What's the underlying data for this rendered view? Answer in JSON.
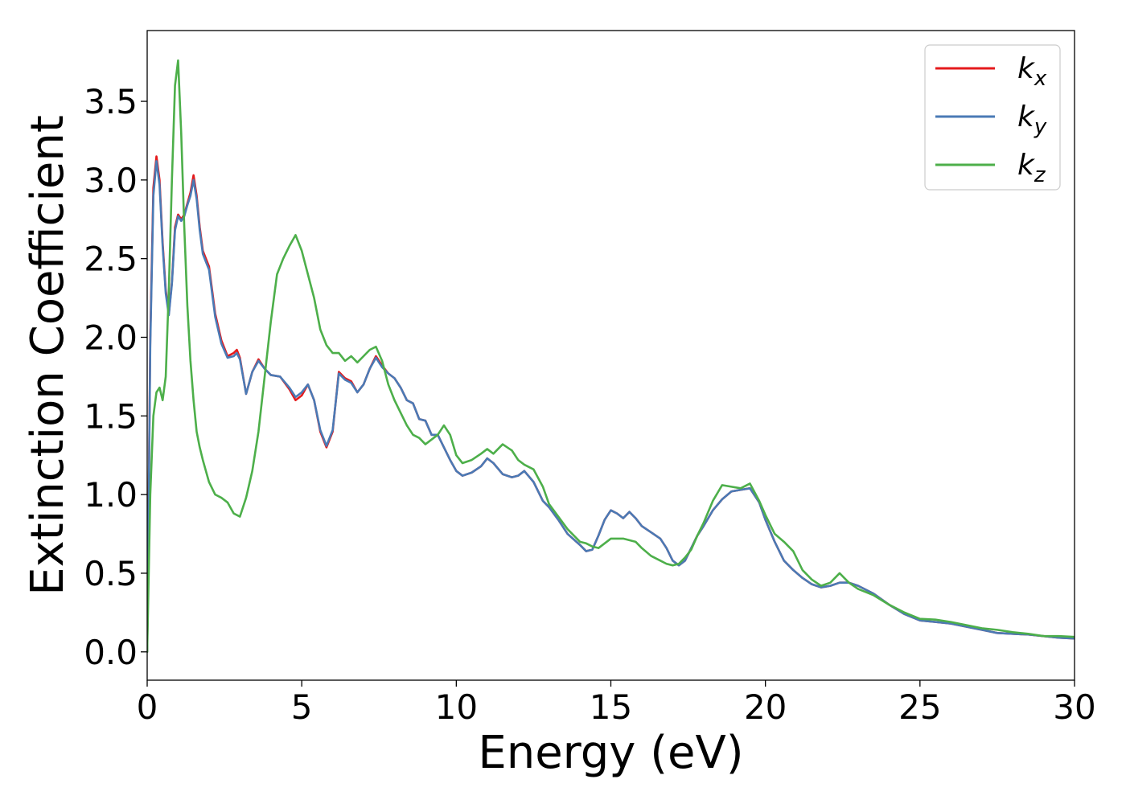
{
  "chart_data": {
    "type": "line",
    "title": "",
    "xlabel": "Energy (eV)",
    "ylabel": "Extinction Coefficient",
    "xlim": [
      0,
      30
    ],
    "ylim": [
      -0.18,
      3.95
    ],
    "xticks": [
      0,
      5,
      10,
      15,
      20,
      25,
      30
    ],
    "xtick_labels": [
      "0",
      "5",
      "10",
      "15",
      "20",
      "25",
      "30"
    ],
    "yticks": [
      0.0,
      0.5,
      1.0,
      1.5,
      2.0,
      2.5,
      3.0,
      3.5
    ],
    "ytick_labels": [
      "0.0",
      "0.5",
      "1.0",
      "1.5",
      "2.0",
      "2.5",
      "3.0",
      "3.5"
    ],
    "grid": false,
    "legend_position": "top-right",
    "series": [
      {
        "name": "k",
        "subscript": "x",
        "color": "#e41a1c",
        "x": [
          0,
          0.05,
          0.1,
          0.2,
          0.3,
          0.4,
          0.5,
          0.6,
          0.7,
          0.8,
          0.9,
          1.0,
          1.1,
          1.2,
          1.3,
          1.4,
          1.5,
          1.6,
          1.7,
          1.8,
          1.9,
          2.0,
          2.2,
          2.4,
          2.6,
          2.8,
          2.9,
          3.0,
          3.2,
          3.4,
          3.6,
          3.8,
          4.0,
          4.3,
          4.6,
          4.8,
          5.0,
          5.2,
          5.4,
          5.6,
          5.8,
          6.0,
          6.2,
          6.4,
          6.6,
          6.8,
          7.0,
          7.2,
          7.4,
          7.6,
          7.8,
          8.0,
          8.2,
          8.4,
          8.6,
          8.8,
          9.0,
          9.2,
          9.4,
          9.6,
          9.8,
          10.0,
          10.2,
          10.5,
          10.8,
          11.0,
          11.2,
          11.5,
          11.8,
          12.0,
          12.2,
          12.5,
          12.8,
          13.0,
          13.3,
          13.6,
          14.0,
          14.2,
          14.4,
          14.6,
          14.8,
          15.0,
          15.2,
          15.4,
          15.6,
          15.8,
          16.0,
          16.3,
          16.6,
          16.8,
          17.0,
          17.2,
          17.4,
          17.6,
          17.8,
          18.0,
          18.3,
          18.6,
          18.9,
          19.2,
          19.5,
          19.8,
          20.0,
          20.3,
          20.6,
          20.9,
          21.2,
          21.5,
          21.8,
          22.1,
          22.4,
          22.7,
          23.0,
          23.5,
          24.0,
          24.5,
          25.0,
          25.5,
          26.0,
          26.5,
          27.0,
          27.5,
          28.0,
          28.5,
          29.0,
          29.5,
          30.0
        ],
        "values": [
          0.0,
          1.0,
          2.0,
          2.95,
          3.15,
          3.0,
          2.6,
          2.3,
          2.15,
          2.35,
          2.7,
          2.78,
          2.75,
          2.78,
          2.85,
          2.92,
          3.03,
          2.9,
          2.7,
          2.55,
          2.5,
          2.45,
          2.15,
          1.98,
          1.88,
          1.9,
          1.92,
          1.87,
          1.64,
          1.78,
          1.86,
          1.8,
          1.76,
          1.75,
          1.67,
          1.6,
          1.63,
          1.7,
          1.6,
          1.4,
          1.3,
          1.4,
          1.78,
          1.74,
          1.72,
          1.65,
          1.7,
          1.8,
          1.88,
          1.82,
          1.77,
          1.74,
          1.68,
          1.6,
          1.58,
          1.48,
          1.47,
          1.38,
          1.38,
          1.3,
          1.22,
          1.15,
          1.12,
          1.14,
          1.18,
          1.23,
          1.2,
          1.13,
          1.11,
          1.12,
          1.15,
          1.08,
          0.96,
          0.92,
          0.84,
          0.75,
          0.68,
          0.64,
          0.65,
          0.74,
          0.84,
          0.9,
          0.88,
          0.85,
          0.89,
          0.85,
          0.8,
          0.76,
          0.72,
          0.66,
          0.58,
          0.55,
          0.58,
          0.66,
          0.74,
          0.8,
          0.9,
          0.97,
          1.02,
          1.03,
          1.04,
          0.95,
          0.84,
          0.7,
          0.58,
          0.52,
          0.47,
          0.43,
          0.41,
          0.42,
          0.44,
          0.44,
          0.42,
          0.37,
          0.3,
          0.24,
          0.2,
          0.19,
          0.18,
          0.16,
          0.14,
          0.12,
          0.115,
          0.11,
          0.1,
          0.09,
          0.085
        ]
      },
      {
        "name": "k",
        "subscript": "y",
        "color": "#4a7ab5",
        "x": [
          0,
          0.05,
          0.1,
          0.2,
          0.3,
          0.4,
          0.5,
          0.6,
          0.7,
          0.8,
          0.9,
          1.0,
          1.1,
          1.2,
          1.3,
          1.4,
          1.5,
          1.6,
          1.7,
          1.8,
          1.9,
          2.0,
          2.2,
          2.4,
          2.6,
          2.8,
          2.9,
          3.0,
          3.2,
          3.4,
          3.6,
          3.8,
          4.0,
          4.3,
          4.6,
          4.8,
          5.0,
          5.2,
          5.4,
          5.6,
          5.8,
          6.0,
          6.2,
          6.4,
          6.6,
          6.8,
          7.0,
          7.2,
          7.4,
          7.6,
          7.8,
          8.0,
          8.2,
          8.4,
          8.6,
          8.8,
          9.0,
          9.2,
          9.4,
          9.6,
          9.8,
          10.0,
          10.2,
          10.5,
          10.8,
          11.0,
          11.2,
          11.5,
          11.8,
          12.0,
          12.2,
          12.5,
          12.8,
          13.0,
          13.3,
          13.6,
          14.0,
          14.2,
          14.4,
          14.6,
          14.8,
          15.0,
          15.2,
          15.4,
          15.6,
          15.8,
          16.0,
          16.3,
          16.6,
          16.8,
          17.0,
          17.2,
          17.4,
          17.6,
          17.8,
          18.0,
          18.3,
          18.6,
          18.9,
          19.2,
          19.5,
          19.8,
          20.0,
          20.3,
          20.6,
          20.9,
          21.2,
          21.5,
          21.8,
          22.1,
          22.4,
          22.7,
          23.0,
          23.5,
          24.0,
          24.5,
          25.0,
          25.5,
          26.0,
          26.5,
          27.0,
          27.5,
          28.0,
          28.5,
          29.0,
          29.5,
          30.0
        ],
        "values": [
          0.0,
          0.95,
          1.95,
          2.9,
          3.12,
          2.97,
          2.58,
          2.28,
          2.14,
          2.34,
          2.68,
          2.77,
          2.74,
          2.77,
          2.84,
          2.9,
          3.0,
          2.88,
          2.68,
          2.53,
          2.48,
          2.43,
          2.13,
          1.96,
          1.87,
          1.88,
          1.9,
          1.86,
          1.64,
          1.78,
          1.85,
          1.8,
          1.76,
          1.75,
          1.68,
          1.62,
          1.65,
          1.7,
          1.6,
          1.41,
          1.31,
          1.41,
          1.77,
          1.73,
          1.71,
          1.65,
          1.7,
          1.8,
          1.87,
          1.81,
          1.77,
          1.74,
          1.68,
          1.6,
          1.58,
          1.48,
          1.47,
          1.38,
          1.38,
          1.3,
          1.22,
          1.15,
          1.12,
          1.14,
          1.18,
          1.23,
          1.2,
          1.13,
          1.11,
          1.12,
          1.15,
          1.08,
          0.96,
          0.92,
          0.84,
          0.75,
          0.68,
          0.64,
          0.65,
          0.74,
          0.84,
          0.9,
          0.88,
          0.85,
          0.89,
          0.85,
          0.8,
          0.76,
          0.72,
          0.66,
          0.58,
          0.55,
          0.58,
          0.66,
          0.74,
          0.8,
          0.9,
          0.97,
          1.02,
          1.03,
          1.04,
          0.95,
          0.84,
          0.7,
          0.58,
          0.52,
          0.47,
          0.43,
          0.41,
          0.42,
          0.44,
          0.44,
          0.42,
          0.37,
          0.3,
          0.24,
          0.2,
          0.19,
          0.18,
          0.16,
          0.14,
          0.12,
          0.115,
          0.11,
          0.1,
          0.09,
          0.085
        ]
      },
      {
        "name": "k",
        "subscript": "z",
        "color": "#4daf4a",
        "x": [
          0,
          0.05,
          0.1,
          0.2,
          0.3,
          0.4,
          0.5,
          0.6,
          0.7,
          0.8,
          0.9,
          1.0,
          1.1,
          1.2,
          1.3,
          1.4,
          1.5,
          1.6,
          1.7,
          1.8,
          1.9,
          2.0,
          2.2,
          2.4,
          2.6,
          2.8,
          3.0,
          3.2,
          3.4,
          3.6,
          3.8,
          4.0,
          4.2,
          4.4,
          4.6,
          4.8,
          5.0,
          5.2,
          5.4,
          5.6,
          5.8,
          6.0,
          6.2,
          6.4,
          6.6,
          6.8,
          7.0,
          7.2,
          7.4,
          7.6,
          7.8,
          8.0,
          8.2,
          8.4,
          8.6,
          8.8,
          9.0,
          9.2,
          9.4,
          9.6,
          9.8,
          10.0,
          10.2,
          10.5,
          10.8,
          11.0,
          11.2,
          11.5,
          11.8,
          12.0,
          12.2,
          12.5,
          12.8,
          13.0,
          13.3,
          13.6,
          14.0,
          14.2,
          14.4,
          14.6,
          14.8,
          15.0,
          15.2,
          15.4,
          15.6,
          15.8,
          16.0,
          16.3,
          16.6,
          16.8,
          17.0,
          17.2,
          17.4,
          17.6,
          17.8,
          18.0,
          18.3,
          18.6,
          18.9,
          19.2,
          19.5,
          19.8,
          20.0,
          20.3,
          20.6,
          20.9,
          21.2,
          21.5,
          21.8,
          22.1,
          22.4,
          22.7,
          23.0,
          23.5,
          24.0,
          24.5,
          25.0,
          25.5,
          26.0,
          26.5,
          27.0,
          27.5,
          28.0,
          28.5,
          29.0,
          29.5,
          30.0
        ],
        "values": [
          0.0,
          0.5,
          1.0,
          1.5,
          1.65,
          1.68,
          1.6,
          1.75,
          2.3,
          3.0,
          3.6,
          3.76,
          3.3,
          2.7,
          2.2,
          1.85,
          1.6,
          1.4,
          1.3,
          1.22,
          1.15,
          1.08,
          1.0,
          0.98,
          0.95,
          0.88,
          0.86,
          0.98,
          1.15,
          1.4,
          1.75,
          2.1,
          2.4,
          2.5,
          2.58,
          2.65,
          2.55,
          2.4,
          2.25,
          2.05,
          1.95,
          1.9,
          1.9,
          1.85,
          1.88,
          1.84,
          1.88,
          1.92,
          1.94,
          1.85,
          1.7,
          1.6,
          1.52,
          1.44,
          1.38,
          1.36,
          1.32,
          1.35,
          1.38,
          1.44,
          1.38,
          1.25,
          1.2,
          1.22,
          1.26,
          1.29,
          1.26,
          1.32,
          1.28,
          1.22,
          1.19,
          1.16,
          1.05,
          0.94,
          0.86,
          0.78,
          0.7,
          0.69,
          0.67,
          0.66,
          0.69,
          0.72,
          0.72,
          0.72,
          0.71,
          0.7,
          0.66,
          0.61,
          0.58,
          0.56,
          0.55,
          0.56,
          0.6,
          0.65,
          0.74,
          0.82,
          0.96,
          1.06,
          1.05,
          1.04,
          1.07,
          0.96,
          0.87,
          0.75,
          0.7,
          0.64,
          0.52,
          0.46,
          0.42,
          0.44,
          0.5,
          0.44,
          0.4,
          0.36,
          0.3,
          0.25,
          0.21,
          0.205,
          0.19,
          0.17,
          0.15,
          0.14,
          0.125,
          0.115,
          0.1,
          0.1,
          0.095
        ]
      }
    ]
  }
}
